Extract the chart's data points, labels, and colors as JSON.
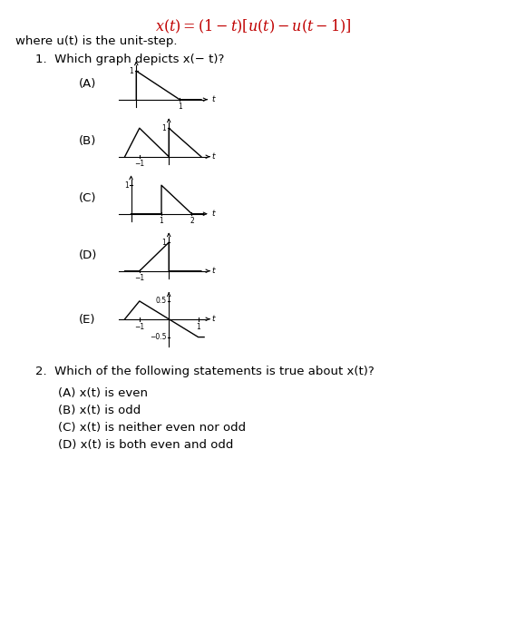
{
  "title_parts": [
    {
      "text": "x(t)",
      "style": "italic"
    },
    {
      "text": " = (1 − t)[u(t) − u(t − 1)]",
      "style": "italic"
    }
  ],
  "title_full": "x(t) = (1 − t)[u(t) − u(t − 1)]",
  "where_text": "where u(t) is the unit-step.",
  "q1_text": "1.  Which graph depicts x(− t)?",
  "q2_text": "2.  Which of the following statements is true about x(t)?",
  "q2_options": [
    "(A) x(t) is even",
    "(B) x(t) is odd",
    "(C) x(t) is neither even nor odd",
    "(D) x(t) is both even and odd"
  ],
  "graphs": [
    {
      "label": "(A)",
      "xlim": [
        -0.4,
        1.7
      ],
      "ylim": [
        -0.25,
        1.35
      ],
      "xticks": [
        1
      ],
      "yticks": [
        1
      ],
      "xticklabels": [
        "1"
      ],
      "yticklabels": [
        "1"
      ],
      "lines": [
        {
          "x": [
            0,
            0,
            1,
            1.5
          ],
          "y": [
            0,
            1,
            0,
            0
          ]
        }
      ]
    },
    {
      "label": "(B)",
      "xlim": [
        -1.7,
        1.4
      ],
      "ylim": [
        -0.25,
        1.35
      ],
      "xticks": [
        -1
      ],
      "yticks": [
        1
      ],
      "xticklabels": [
        "−1"
      ],
      "yticklabels": [
        "1"
      ],
      "lines": [
        {
          "x": [
            -1.5,
            -1,
            0,
            0,
            1.1
          ],
          "y": [
            0,
            1,
            0,
            1,
            0
          ]
        }
      ]
    },
    {
      "label": "(C)",
      "xlim": [
        -0.4,
        2.6
      ],
      "ylim": [
        -0.25,
        1.35
      ],
      "xticks": [
        1,
        2
      ],
      "yticks": [
        1
      ],
      "xticklabels": [
        "1",
        "2"
      ],
      "yticklabels": [
        "1"
      ],
      "lines": [
        {
          "x": [
            0,
            1,
            1,
            2,
            2.4
          ],
          "y": [
            0,
            0,
            1,
            0,
            0
          ]
        }
      ]
    },
    {
      "label": "(D)",
      "xlim": [
        -1.7,
        1.4
      ],
      "ylim": [
        -0.25,
        1.35
      ],
      "xticks": [
        -1
      ],
      "yticks": [
        1
      ],
      "xticklabels": [
        "−1"
      ],
      "yticklabels": [
        "1"
      ],
      "lines": [
        {
          "x": [
            -1.5,
            -1,
            0,
            0,
            1.1
          ],
          "y": [
            0,
            0,
            1,
            0,
            0
          ]
        }
      ]
    },
    {
      "label": "(E)",
      "xlim": [
        -1.7,
        1.4
      ],
      "ylim": [
        -0.75,
        0.75
      ],
      "xticks": [
        -1,
        1
      ],
      "yticks": [
        0.5,
        -0.5
      ],
      "xticklabels": [
        "−1",
        "1"
      ],
      "yticklabels": [
        "0.5",
        "−0.5"
      ],
      "lines": [
        {
          "x": [
            -1.5,
            -1,
            1,
            1.2
          ],
          "y": [
            0,
            0.5,
            -0.5,
            -0.5
          ]
        }
      ]
    }
  ]
}
